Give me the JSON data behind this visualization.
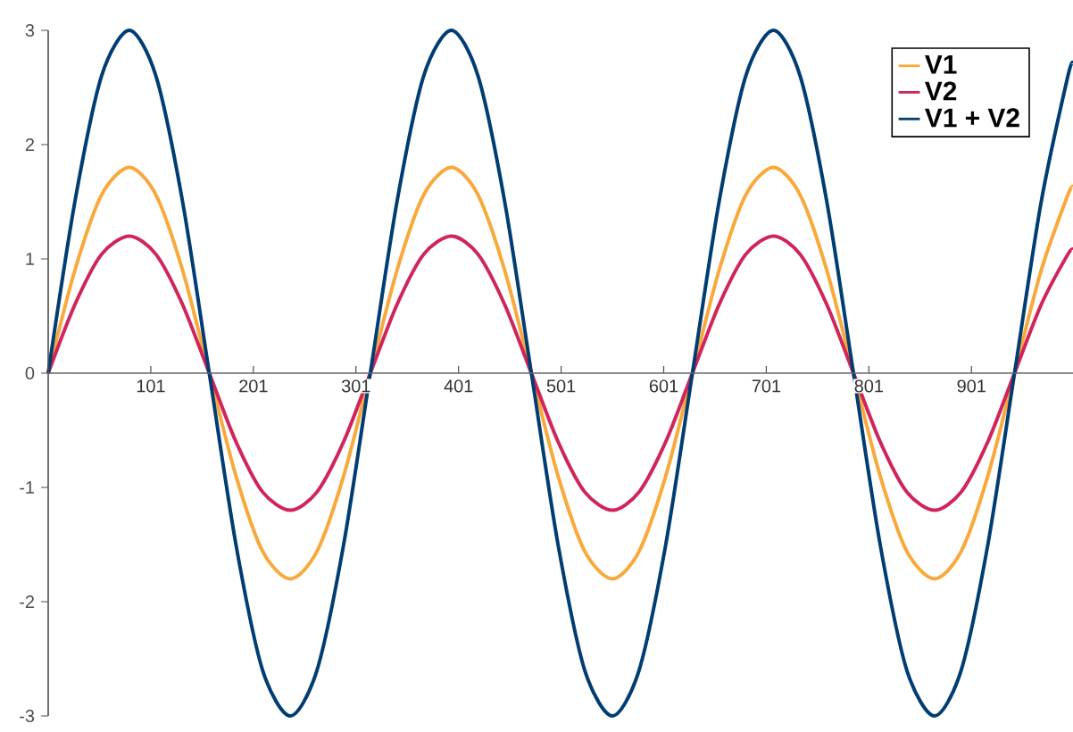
{
  "chart_data": {
    "type": "line",
    "x": [
      1,
      27,
      53,
      80,
      106,
      132,
      158,
      184,
      210,
      237,
      263,
      289,
      315,
      341,
      367,
      394,
      420,
      446,
      472,
      498,
      524,
      551,
      577,
      603,
      629,
      655,
      681,
      708,
      734,
      760,
      786,
      812,
      838,
      865,
      891,
      917,
      943,
      969,
      995,
      1000
    ],
    "series": [
      {
        "name": "V1",
        "color": "#f9a93b",
        "values": [
          0,
          0.9,
          1.56,
          1.8,
          1.56,
          0.9,
          0,
          -0.9,
          -1.56,
          -1.8,
          -1.56,
          -0.9,
          0,
          0.9,
          1.56,
          1.8,
          1.56,
          0.9,
          0,
          -0.9,
          -1.56,
          -1.8,
          -1.56,
          -0.9,
          0,
          0.9,
          1.56,
          1.8,
          1.56,
          0.9,
          0,
          -0.9,
          -1.56,
          -1.8,
          -1.56,
          -0.9,
          0,
          0.9,
          1.56,
          1.63
        ]
      },
      {
        "name": "V2",
        "color": "#d0245a",
        "values": [
          0,
          0.6,
          1.04,
          1.2,
          1.04,
          0.6,
          0,
          -0.6,
          -1.04,
          -1.2,
          -1.04,
          -0.6,
          0,
          0.6,
          1.04,
          1.2,
          1.04,
          0.6,
          0,
          -0.6,
          -1.04,
          -1.2,
          -1.04,
          -0.6,
          0,
          0.6,
          1.04,
          1.2,
          1.04,
          0.6,
          0,
          -0.6,
          -1.04,
          -1.2,
          -1.04,
          -0.6,
          0,
          0.6,
          1.04,
          1.08
        ]
      },
      {
        "name": "V1 + V2",
        "color": "#003d73",
        "values": [
          0,
          1.5,
          2.6,
          3,
          2.6,
          1.5,
          0,
          -1.5,
          -2.6,
          -3,
          -2.6,
          -1.5,
          0,
          1.5,
          2.6,
          3,
          2.6,
          1.5,
          0,
          -1.5,
          -2.6,
          -3,
          -2.6,
          -1.5,
          0,
          1.5,
          2.6,
          3,
          2.6,
          1.5,
          0,
          -1.5,
          -2.6,
          -3,
          -2.6,
          -1.5,
          0,
          1.5,
          2.6,
          2.71
        ]
      }
    ],
    "xlim": [
      1,
      1000
    ],
    "ylim": [
      -3,
      3
    ],
    "xticks": [
      101,
      201,
      301,
      401,
      501,
      601,
      701,
      801,
      901
    ],
    "yticks": [
      -3,
      -2,
      -1,
      0,
      1,
      2,
      3
    ],
    "legend": "top right",
    "grid": false,
    "marker": "none",
    "line_style": "solid"
  }
}
